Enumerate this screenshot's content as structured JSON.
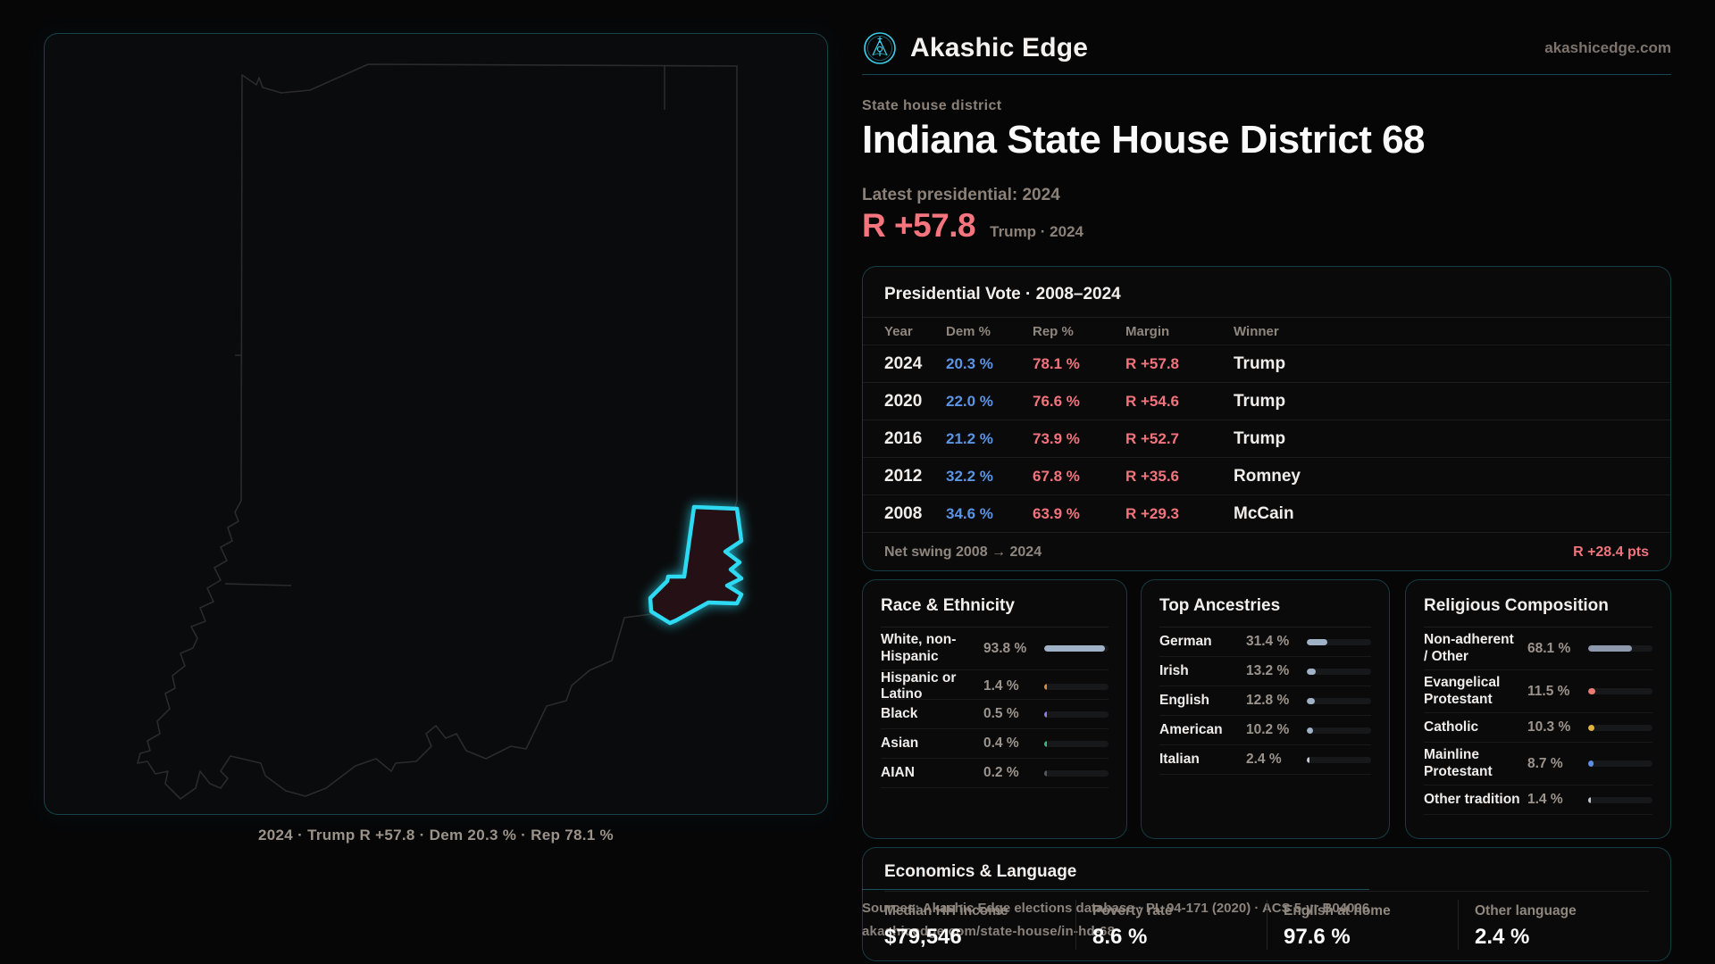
{
  "brand": {
    "name": "Akashic Edge",
    "domain": "akashicedge.com"
  },
  "header": {
    "kicker": "State house district",
    "title": "Indiana State House District 68",
    "latest_label": "Latest presidential: 2024",
    "margin_value": "R +57.8",
    "margin_sub": "Trump · 2024"
  },
  "map": {
    "caption": "2024 · Trump R +57.8 · Dem 20.3 % · Rep 78.1 %"
  },
  "presidential": {
    "title": "Presidential Vote · 2008–2024",
    "columns": {
      "year": "Year",
      "dem": "Dem %",
      "rep": "Rep %",
      "margin": "Margin",
      "winner": "Winner"
    },
    "rows": [
      {
        "year": "2024",
        "dem": "20.3 %",
        "rep": "78.1 %",
        "margin": "R +57.8",
        "winner": "Trump"
      },
      {
        "year": "2020",
        "dem": "22.0 %",
        "rep": "76.6 %",
        "margin": "R +54.6",
        "winner": "Trump"
      },
      {
        "year": "2016",
        "dem": "21.2 %",
        "rep": "73.9 %",
        "margin": "R +52.7",
        "winner": "Trump"
      },
      {
        "year": "2012",
        "dem": "32.2 %",
        "rep": "67.8 %",
        "margin": "R +35.6",
        "winner": "Romney"
      },
      {
        "year": "2008",
        "dem": "34.6 %",
        "rep": "63.9 %",
        "margin": "R +29.3",
        "winner": "McCain"
      }
    ],
    "footer_label": "Net swing 2008 → 2024",
    "footer_value": "R +28.4 pts"
  },
  "race": {
    "title": "Race & Ethnicity",
    "rows": [
      {
        "label": "White, non-Hispanic",
        "value": "93.8 %",
        "pct": 93.8,
        "color": "#9fb2c6"
      },
      {
        "label": "Hispanic or Latino",
        "value": "1.4 %",
        "pct": 1.4,
        "color": "#e08a3c"
      },
      {
        "label": "Black",
        "value": "0.5 %",
        "pct": 0.5,
        "color": "#8d7bed"
      },
      {
        "label": "Asian",
        "value": "0.4 %",
        "pct": 0.4,
        "color": "#37b87a"
      },
      {
        "label": "AIAN",
        "value": "0.2 %",
        "pct": 0.2,
        "color": "#55585e"
      }
    ]
  },
  "ancestries": {
    "title": "Top Ancestries",
    "rows": [
      {
        "label": "German",
        "value": "31.4 %",
        "pct": 31.4,
        "color": "#9fb2c6"
      },
      {
        "label": "Irish",
        "value": "13.2 %",
        "pct": 13.2,
        "color": "#9fb2c6"
      },
      {
        "label": "English",
        "value": "12.8 %",
        "pct": 12.8,
        "color": "#9fb2c6"
      },
      {
        "label": "American",
        "value": "10.2 %",
        "pct": 10.2,
        "color": "#9fb2c6"
      },
      {
        "label": "Italian",
        "value": "2.4 %",
        "pct": 2.4,
        "color": "#c3c7ce"
      }
    ]
  },
  "religion": {
    "title": "Religious Composition",
    "rows": [
      {
        "label": "Non-adherent / Other",
        "value": "68.1 %",
        "pct": 68.1,
        "color": "#8e99ad"
      },
      {
        "label": "Evangelical Protestant",
        "value": "11.5 %",
        "pct": 11.5,
        "color": "#e87b72"
      },
      {
        "label": "Catholic",
        "value": "10.3 %",
        "pct": 10.3,
        "color": "#e0b23f"
      },
      {
        "label": "Mainline Protestant",
        "value": "8.7 %",
        "pct": 8.7,
        "color": "#5b8fe8"
      },
      {
        "label": "Other tradition",
        "value": "1.4 %",
        "pct": 1.4,
        "color": "#c3c7ce"
      }
    ]
  },
  "economics": {
    "title": "Economics & Language",
    "stats": [
      {
        "label": "Median HH income",
        "value": "$79,546"
      },
      {
        "label": "Poverty rate",
        "value": "8.6 %"
      },
      {
        "label": "English at home",
        "value": "97.6 %"
      },
      {
        "label": "Other language",
        "value": "2.4 %"
      }
    ]
  },
  "source": {
    "line1": "Sources: Akashic Edge elections database · PL 94-171 (2020) · ACS 5-yr B04006",
    "line2": "akashicedge.com/state-house/in-hd-68"
  },
  "colors": {
    "accent": "#32d7ee",
    "rep": "#f2737c",
    "dem": "#5b94e4",
    "district_fill": "#241015"
  }
}
